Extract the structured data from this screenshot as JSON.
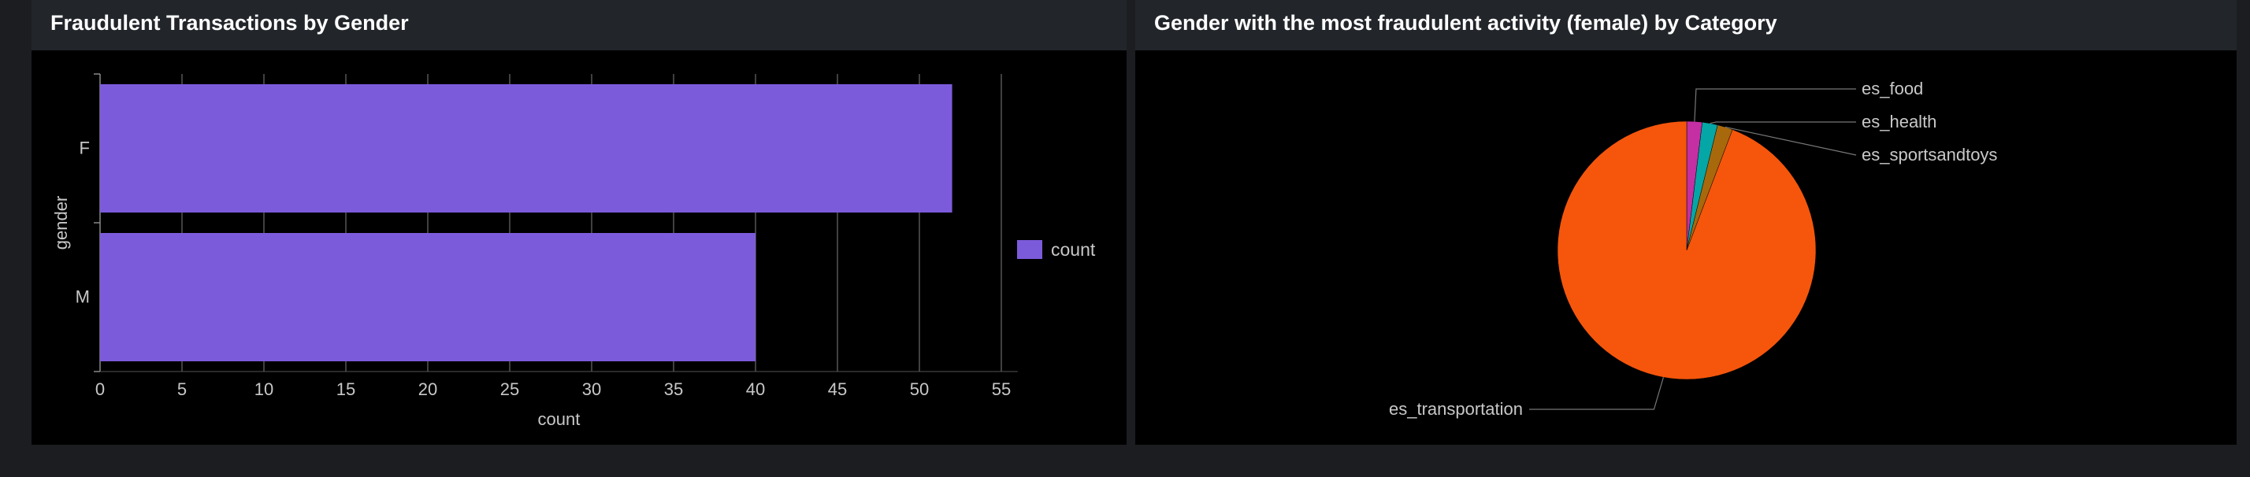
{
  "panels": [
    {
      "title": "Fraudulent Transactions by Gender"
    },
    {
      "title": "Gender with the most fraudulent activity (female) by Category"
    }
  ],
  "colors": {
    "page_bg": "#1b1d20",
    "panel_header_bg": "#22252a",
    "panel_bg": "#000000",
    "bar": "#7c5bdb",
    "pie_transportation": "#f5560c",
    "pie_food": "#c42fa3",
    "pie_health": "#05a6a6",
    "pie_sportsandtoys": "#a8690c",
    "axis_text": "#c8c8c8",
    "grid": "#555555"
  },
  "chart_data": [
    {
      "type": "bar",
      "orientation": "horizontal",
      "title": "Fraudulent Transactions by Gender",
      "categories": [
        "F",
        "M"
      ],
      "series": [
        {
          "name": "count",
          "values": [
            52,
            40
          ]
        }
      ],
      "xlabel": "count",
      "ylabel": "gender",
      "xlim": [
        0,
        56
      ],
      "xticks": [
        0,
        5,
        10,
        15,
        20,
        25,
        30,
        35,
        40,
        45,
        50,
        55
      ],
      "grid": true,
      "legend": {
        "position": "right",
        "entries": [
          "count"
        ]
      }
    },
    {
      "type": "pie",
      "title": "Gender with the most fraudulent activity (female) by Category",
      "labels": [
        "es_food",
        "es_health",
        "es_sportsandtoys",
        "es_transportation"
      ],
      "values": [
        1,
        1,
        1,
        49
      ],
      "colors": [
        "#c42fa3",
        "#05a6a6",
        "#a8690c",
        "#f5560c"
      ]
    }
  ]
}
